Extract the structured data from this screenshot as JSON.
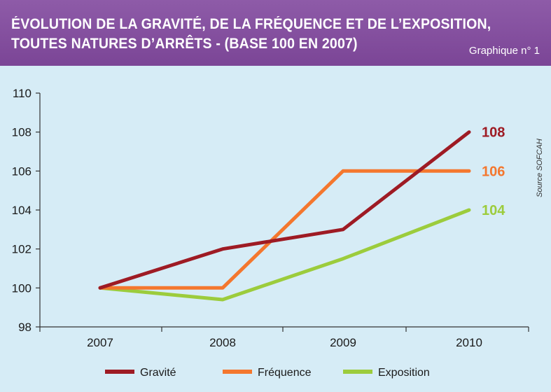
{
  "header": {
    "title_line1": "ÉVOLUTION DE LA GRAVITÉ, DE LA FRÉQUENCE ET DE L’EXPOSITION,",
    "title_line2": "TOUTES NATURES D’ARRÊTS - (BASE 100 EN 2007)",
    "subtitle": "Graphique n° 1"
  },
  "source": "Source SOFCAH",
  "colors": {
    "background": "#d6ecf6",
    "header": "#7b4596",
    "gravite": "#9e1b24",
    "frequence": "#f4772e",
    "exposition": "#9ccc3c",
    "axis": "#333333"
  },
  "chart_data": {
    "type": "line",
    "title": "ÉVOLUTION DE LA GRAVITÉ, DE LA FRÉQUENCE ET DE L’EXPOSITION, TOUTES NATURES D’ARRÊTS - (BASE 100 EN 2007)",
    "categories": [
      "2007",
      "2008",
      "2009",
      "2010"
    ],
    "ylim": [
      98,
      110
    ],
    "yticks": [
      "98",
      "100",
      "102",
      "104",
      "106",
      "108",
      "110"
    ],
    "xlabel": "",
    "ylabel": "",
    "legend_position": "bottom",
    "series": [
      {
        "name": "Gravité",
        "values": [
          100,
          102,
          103,
          108
        ],
        "end_label": "108",
        "color": "#9e1b24"
      },
      {
        "name": "Fréquence",
        "values": [
          100,
          100,
          106,
          106
        ],
        "end_label": "106",
        "color": "#f4772e"
      },
      {
        "name": "Exposition",
        "values": [
          100,
          99.4,
          101.5,
          104
        ],
        "end_label": "104",
        "color": "#9ccc3c"
      }
    ]
  }
}
